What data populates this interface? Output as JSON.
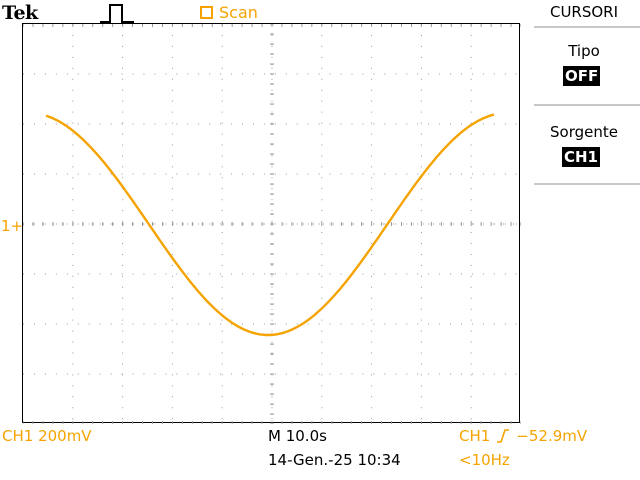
{
  "header": {
    "brand": "Tek",
    "run_icon": "square-pulse-icon",
    "mode_label": "Scan",
    "mode_icon": "square-outline-icon"
  },
  "screen": {
    "channel_marker": "1+",
    "trace_color": "#f5a300"
  },
  "menu": {
    "title": "CURSORI",
    "items": [
      {
        "label": "Tipo",
        "value": "OFF"
      },
      {
        "label": "Sorgente",
        "value": "CH1"
      }
    ]
  },
  "status": {
    "channel_scale": "CH1  200mV",
    "timebase": "M 10.0s",
    "datetime": "14-Gen.-25 10:34",
    "trigger_channel": "CH1",
    "trigger_level": "−52.9mV",
    "trigger_freq": "<10Hz"
  }
}
